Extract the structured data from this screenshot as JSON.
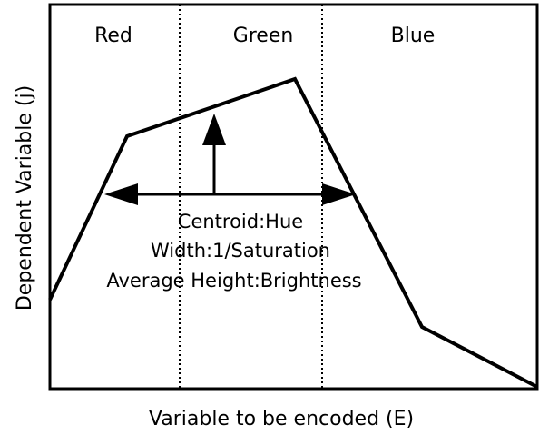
{
  "regions": [
    "Red",
    "Green",
    "Blue"
  ],
  "annotations": [
    "Centroid:Hue",
    "Width:1/Saturation",
    "Average Height:Brightness"
  ],
  "x_axis_label": "Variable to be encoded (E)",
  "y_axis_label": "Dependent Variable (j)"
}
